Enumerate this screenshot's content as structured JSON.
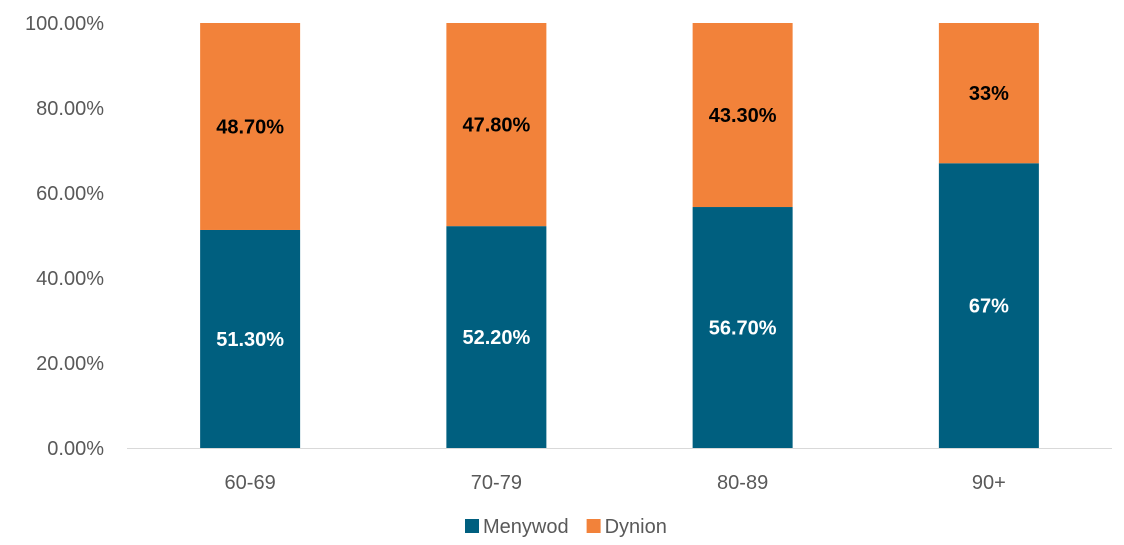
{
  "chart_data": {
    "type": "bar",
    "stacked": true,
    "categories": [
      "60-69",
      "70-79",
      "80-89",
      "90+"
    ],
    "series": [
      {
        "name": "Menywod",
        "values": [
          51.3,
          52.2,
          56.7,
          67
        ],
        "labels": [
          "51.30%",
          "52.20%",
          "56.70%",
          "67%"
        ],
        "color": "#005f7f",
        "label_color": "#ffffff"
      },
      {
        "name": "Dynion",
        "values": [
          48.7,
          47.8,
          43.3,
          33
        ],
        "labels": [
          "48.70%",
          "47.80%",
          "43.30%",
          "33%"
        ],
        "color": "#f2823a",
        "label_color": "#000000"
      }
    ],
    "ylim": [
      0,
      100
    ],
    "yticks": [
      0,
      20,
      40,
      60,
      80,
      100
    ],
    "ytick_labels": [
      "0.00%",
      "20.00%",
      "40.00%",
      "60.00%",
      "80.00%",
      "100.00%"
    ],
    "xlabel": "",
    "ylabel": "",
    "legend_position": "bottom",
    "grid": false
  }
}
